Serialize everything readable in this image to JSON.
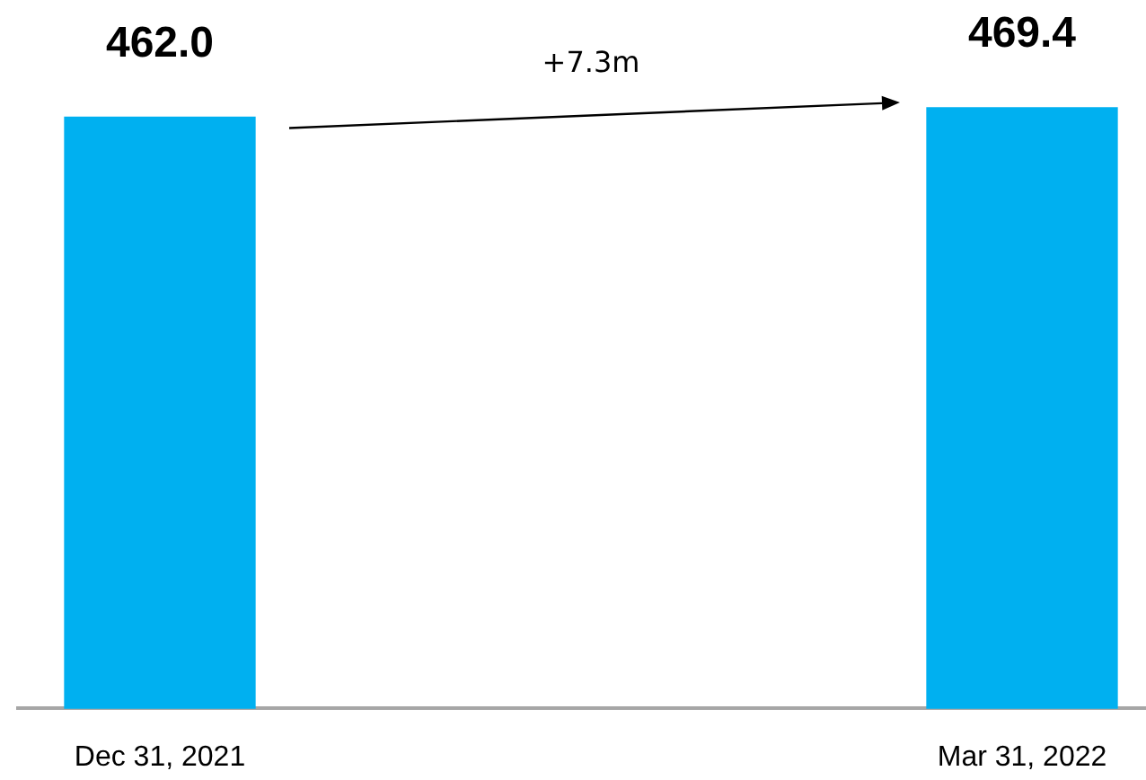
{
  "chart_data": {
    "type": "bar",
    "categories": [
      "Dec 31, 2021",
      "Mar 31, 2022"
    ],
    "values": [
      462.0,
      469.4
    ],
    "value_labels": [
      "462.0",
      "469.4"
    ],
    "color": "#00b0f0",
    "annotations": [
      "+7.3m"
    ],
    "grid": false,
    "legend": false,
    "tick_labels": "x"
  }
}
